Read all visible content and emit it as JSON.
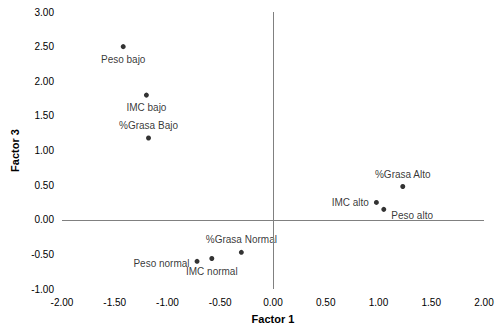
{
  "chart_data": {
    "type": "scatter",
    "x_label": "Factor 1",
    "y_label": "Factor 3",
    "labels": [
      "Peso bajo",
      "IMC bajo",
      "%Grasa Bajo",
      "%Grasa Alto",
      "IMC alto",
      "Peso alto",
      "%Grasa Normal",
      "IMC normal",
      "Peso normal"
    ],
    "x": [
      -1.42,
      -1.2,
      -1.18,
      1.23,
      0.98,
      1.05,
      -0.3,
      -0.58,
      -0.72
    ],
    "values": [
      2.5,
      1.8,
      1.18,
      0.48,
      0.25,
      0.15,
      -0.47,
      -0.56,
      -0.6
    ],
    "color": "#000000",
    "marker": "circle",
    "grid": false,
    "xlim": [
      -2,
      2
    ],
    "xticks": [
      {
        "value": -2,
        "label": "-2.00"
      },
      {
        "value": -1.5,
        "label": "-1.50"
      },
      {
        "value": -1,
        "label": "-1.00"
      },
      {
        "value": -0.5,
        "label": "-0.50"
      },
      {
        "value": 0,
        "label": "0.00"
      },
      {
        "value": 0.5,
        "label": "0.50"
      },
      {
        "value": 1,
        "label": "1.00"
      },
      {
        "value": 1.5,
        "label": "1.50"
      },
      {
        "value": 2,
        "label": "2.00"
      }
    ],
    "ylim": [
      -1,
      3
    ],
    "yticks": [
      {
        "value": -1,
        "label": "-1.00"
      },
      {
        "value": -0.5,
        "label": "-0.50"
      },
      {
        "value": 0,
        "label": "0.00"
      },
      {
        "value": 0.5,
        "label": "0.50"
      },
      {
        "value": 1,
        "label": "1.00"
      },
      {
        "value": 1.5,
        "label": "1.50"
      },
      {
        "value": 2,
        "label": "2.00"
      },
      {
        "value": 2.5,
        "label": "2.50"
      },
      {
        "value": 3,
        "label": "3.00"
      }
    ]
  }
}
